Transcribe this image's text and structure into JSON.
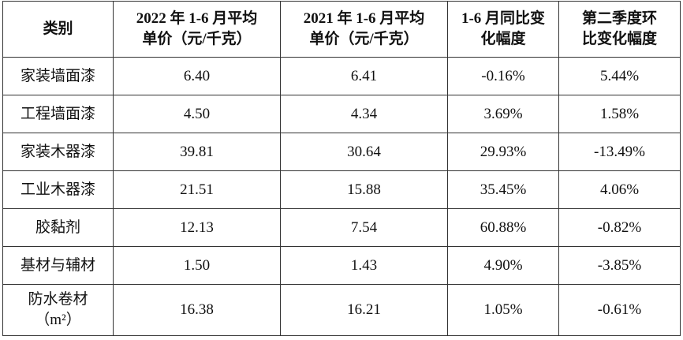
{
  "table": {
    "header": [
      [
        "类别"
      ],
      [
        "2022 年 1-6 月平均",
        "单价（元/千克）"
      ],
      [
        "2021 年 1-6 月平均",
        "单价（元/千克）"
      ],
      [
        "1-6 月同比变",
        "化幅度"
      ],
      [
        "第二季度环",
        "比变化幅度"
      ]
    ],
    "rows": [
      [
        [
          "家装墙面漆"
        ],
        "6.40",
        "6.41",
        "-0.16%",
        "5.44%"
      ],
      [
        [
          "工程墙面漆"
        ],
        "4.50",
        "4.34",
        "3.69%",
        "1.58%"
      ],
      [
        [
          "家装木器漆"
        ],
        "39.81",
        "30.64",
        "29.93%",
        "-13.49%"
      ],
      [
        [
          "工业木器漆"
        ],
        "21.51",
        "15.88",
        "35.45%",
        "4.06%"
      ],
      [
        [
          "胶黏剂"
        ],
        "12.13",
        "7.54",
        "60.88%",
        "-0.82%"
      ],
      [
        [
          "基材与辅材"
        ],
        "1.50",
        "1.43",
        "4.90%",
        "-3.85%"
      ],
      [
        [
          "防水卷材",
          "（m²）"
        ],
        "16.38",
        "16.21",
        "1.05%",
        "-0.61%"
      ]
    ]
  }
}
